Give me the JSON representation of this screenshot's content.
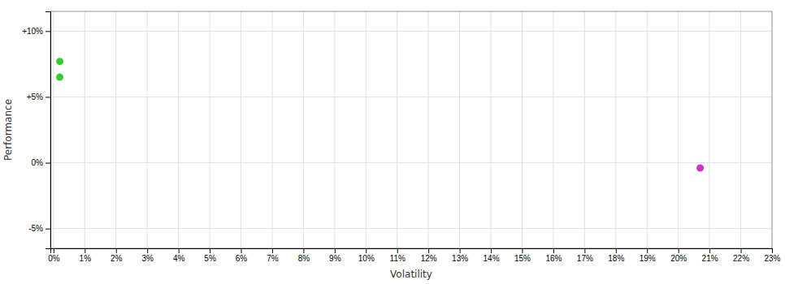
{
  "chart_data": {
    "type": "scatter",
    "xlabel": "Volatility",
    "ylabel": "Performance",
    "x": [
      0.002,
      0.002,
      0.207
    ],
    "values": [
      0.077,
      0.065,
      -0.004
    ],
    "colors": [
      "#33cc33",
      "#33cc33",
      "#cc33cc"
    ],
    "xlim": [
      -0.001,
      0.23
    ],
    "ylim": [
      -0.065,
      0.115
    ],
    "xticks": [
      {
        "value": 0.0,
        "label": "0%"
      },
      {
        "value": 0.01,
        "label": "1%"
      },
      {
        "value": 0.02,
        "label": "2%"
      },
      {
        "value": 0.03,
        "label": "3%"
      },
      {
        "value": 0.04,
        "label": "4%"
      },
      {
        "value": 0.05,
        "label": "5%"
      },
      {
        "value": 0.06,
        "label": "6%"
      },
      {
        "value": 0.07,
        "label": "7%"
      },
      {
        "value": 0.08,
        "label": "8%"
      },
      {
        "value": 0.09,
        "label": "9%"
      },
      {
        "value": 0.1,
        "label": "10%"
      },
      {
        "value": 0.11,
        "label": "11%"
      },
      {
        "value": 0.12,
        "label": "12%"
      },
      {
        "value": 0.13,
        "label": "13%"
      },
      {
        "value": 0.14,
        "label": "14%"
      },
      {
        "value": 0.15,
        "label": "15%"
      },
      {
        "value": 0.16,
        "label": "16%"
      },
      {
        "value": 0.17,
        "label": "17%"
      },
      {
        "value": 0.18,
        "label": "18%"
      },
      {
        "value": 0.19,
        "label": "19%"
      },
      {
        "value": 0.2,
        "label": "20%"
      },
      {
        "value": 0.21,
        "label": "21%"
      },
      {
        "value": 0.22,
        "label": "22%"
      },
      {
        "value": 0.23,
        "label": "23%"
      }
    ],
    "yticks": [
      {
        "value": -0.05,
        "label": "-5%"
      },
      {
        "value": 0.0,
        "label": "0%"
      },
      {
        "value": 0.05,
        "label": "+5%"
      },
      {
        "value": 0.1,
        "label": "+10%"
      }
    ],
    "grid": true
  }
}
